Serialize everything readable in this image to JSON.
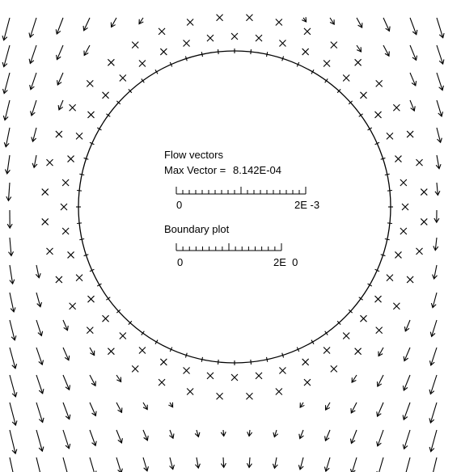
{
  "legend": {
    "flow_title": "Flow vectors",
    "max_label": "Max Vector =",
    "max_value": "8.142E-04",
    "flow_scale_min": "0",
    "flow_scale_max": "2E -3",
    "boundary_title": "Boundary plot",
    "boundary_scale_min": "0",
    "boundary_scale_max": "2E  0"
  }
}
